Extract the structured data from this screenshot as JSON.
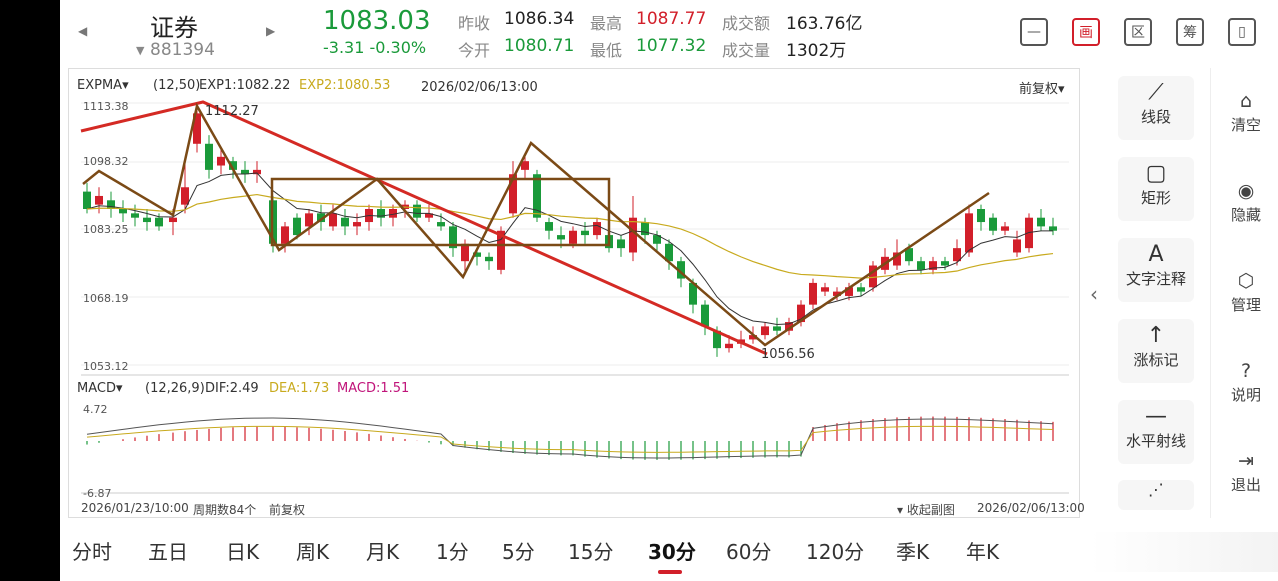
{
  "header": {
    "stock_name": "证券",
    "stock_code": "881394",
    "price": "1083.03",
    "change": "-3.31  -0.30%",
    "quotes": [
      {
        "label": "昨收",
        "value": "1086.34",
        "color": "neutral"
      },
      {
        "label": "最高",
        "value": "1087.77",
        "color": "up"
      },
      {
        "label": "成交额",
        "value": "163.76亿",
        "color": "neutral"
      },
      {
        "label": "今开",
        "value": "1080.71",
        "color": "down"
      },
      {
        "label": "最低",
        "value": "1077.32",
        "color": "down"
      },
      {
        "label": "成交量",
        "value": "1302万",
        "color": "neutral"
      }
    ],
    "toolbar_icons": [
      "minus-box-icon",
      "draw-icon",
      "range-icon",
      "chips-icon",
      "portrait-switch-icon"
    ],
    "toolbar_glyphs": [
      "—",
      "画",
      "区",
      "筹",
      "▯"
    ]
  },
  "main_chart": {
    "indicator": "EXPMA",
    "params": "(12,50)",
    "exp1": "EXP1:1082.22",
    "exp2": "EXP2:1080.53",
    "datetime": "2026/02/06/13:00",
    "adjust": "前复权",
    "y_ticks": [
      "1113.38",
      "1098.32",
      "1083.25",
      "1068.19",
      "1053.12"
    ],
    "high_label": "1112.27",
    "low_label": "1056.56"
  },
  "sub_chart": {
    "indicator": "MACD",
    "params": "(12,26,9)",
    "dif": "DIF:2.49",
    "dea": "DEA:1.73",
    "macd": "MACD:1.51",
    "y_top": "4.72",
    "y_bottom": "-6.87"
  },
  "footer": {
    "start": "2026/01/23/10:00",
    "count": "周期数84个",
    "adjust": "前复权",
    "collapse": "收起副图",
    "end": "2026/02/06/13:00"
  },
  "tools": [
    {
      "label": "线段",
      "icon": "line-segment-icon",
      "glyph": "⟋"
    },
    {
      "label": "矩形",
      "icon": "rectangle-icon",
      "glyph": "▢"
    },
    {
      "label": "文字注释",
      "icon": "text-note-icon",
      "glyph": "A"
    },
    {
      "label": "涨标记",
      "icon": "up-arrow-icon",
      "glyph": "↑"
    },
    {
      "label": "水平射线",
      "icon": "horizontal-ray-icon",
      "glyph": "—"
    }
  ],
  "right_actions": [
    {
      "label": "清空",
      "icon": "broom-icon",
      "glyph": "⌂"
    },
    {
      "label": "隐藏",
      "icon": "eye-icon",
      "glyph": "◉"
    },
    {
      "label": "管理",
      "icon": "gear-icon",
      "glyph": "⬡"
    },
    {
      "label": "说明",
      "icon": "help-icon",
      "glyph": "?"
    },
    {
      "label": "退出",
      "icon": "exit-icon",
      "glyph": "⇥"
    }
  ],
  "periods": [
    "分时",
    "五日",
    "日K",
    "周K",
    "月K",
    "1分",
    "5分",
    "15分",
    "30分",
    "60分",
    "120分",
    "季K",
    "年K"
  ],
  "active_period": "30分",
  "colors": {
    "up": "#d21f2a",
    "down": "#1a9a3a",
    "exp1": "#333333",
    "exp2": "#c8aa1e",
    "trend": "#d42a24",
    "brown": "#7b4a16"
  }
}
